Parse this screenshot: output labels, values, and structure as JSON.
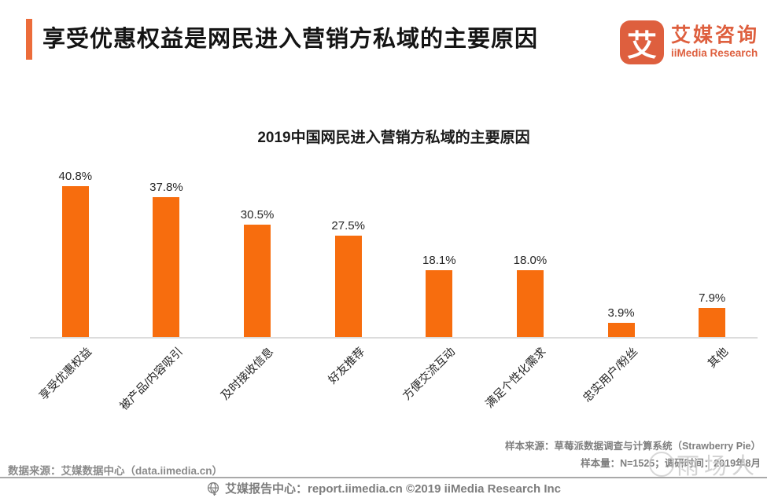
{
  "header": {
    "title": "享受优惠权益是网民进入营销方私域的主要原因",
    "logo": {
      "symbol": "艾",
      "name_cn": "艾媒咨询",
      "name_en": "iiMedia Research",
      "brand_color": "#DE5F3E"
    }
  },
  "chart_data": {
    "type": "bar",
    "title": "2019中国网民进入营销方私域的主要原因",
    "categories": [
      "享受优惠权益",
      "被产品/内容吸引",
      "及时接收信息",
      "好友推荐",
      "方便交流互动",
      "满足个性化需求",
      "忠实用户/粉丝",
      "其他"
    ],
    "values": [
      40.8,
      37.8,
      30.5,
      27.5,
      18.1,
      18.0,
      3.9,
      7.9
    ],
    "value_labels": [
      "40.8%",
      "37.8%",
      "30.5%",
      "27.5%",
      "18.1%",
      "18.0%",
      "3.9%",
      "7.9%"
    ],
    "bar_color": "#F76D0E",
    "xlabel": "",
    "ylabel": "",
    "ylim": [
      0,
      45
    ],
    "grid": false,
    "legend": false,
    "category_label_rotation_deg": -45
  },
  "footnotes": {
    "data_source": "数据来源：艾媒数据中心（data.iimedia.cn）",
    "sample_source": "样本来源：草莓派数据调查与计算系统（Strawberry Pie）",
    "sample_info": "样本量：N=1525；调研时间：2019年8月"
  },
  "watermark": {
    "text": "雨场人"
  },
  "footer": {
    "text": "艾媒报告中心：report.iimedia.cn ©2019  iiMedia Research  Inc",
    "icon": "globe-icon"
  }
}
